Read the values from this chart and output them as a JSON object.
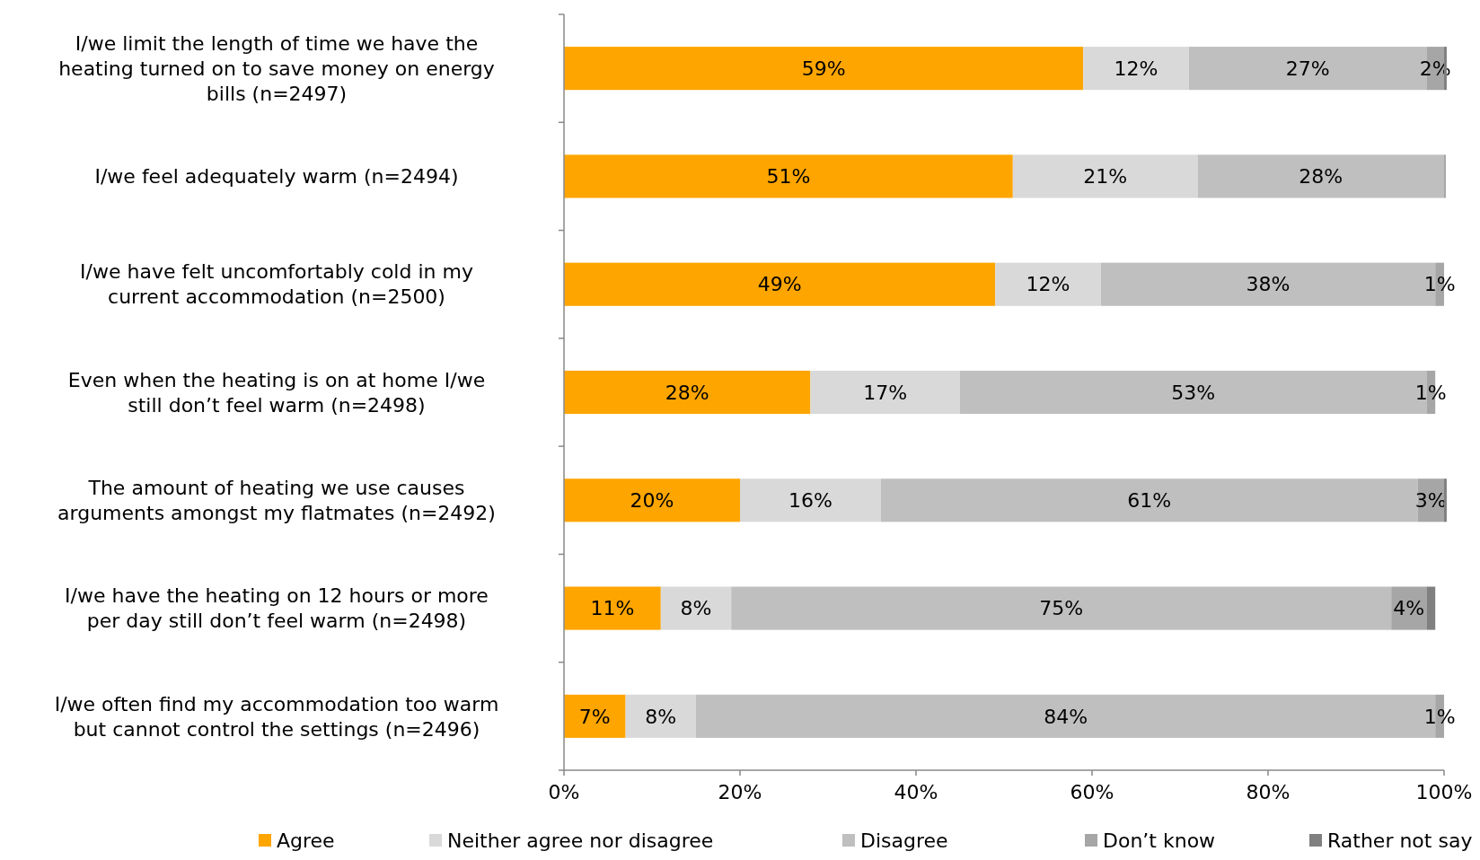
{
  "chart_data": {
    "type": "bar",
    "orientation": "horizontal",
    "stacked": true,
    "categories": [
      "I/we limit the length of time we have the heating turned on to save money on energy bills (n=2497)",
      "I/we feel adequately warm (n=2494)",
      "I/we have felt uncomfortably cold in my current accommodation (n=2500)",
      "Even when the heating is on at home I/we still don’t feel warm (n=2498)",
      "The amount of heating we use causes arguments amongst my flatmates (n=2492)",
      "I/we have the heating on 12 hours or more per day still don’t feel warm (n=2498)",
      "I/we often find my accommodation too warm but cannot control the settings (n=2496)"
    ],
    "series": [
      {
        "name": "Agree",
        "color": "#ffa500",
        "values": [
          59,
          51,
          49,
          28,
          20,
          11,
          7
        ],
        "value_labels": [
          "59%",
          "51%",
          "49%",
          "28%",
          "20%",
          "11%",
          "7%"
        ]
      },
      {
        "name": "Neither agree nor disagree",
        "color": "#d9d9d9",
        "values": [
          12,
          21,
          12,
          17,
          16,
          8,
          8
        ],
        "value_labels": [
          "12%",
          "21%",
          "12%",
          "17%",
          "16%",
          "8%",
          "8%"
        ]
      },
      {
        "name": "Disagree",
        "color": "#bfbfbf",
        "values": [
          27,
          28,
          38,
          53,
          61,
          75,
          84
        ],
        "value_labels": [
          "27%",
          "28%",
          "38%",
          "53%",
          "61%",
          "75%",
          "84%"
        ]
      },
      {
        "name": "Don’t know",
        "color": "#a6a6a6",
        "values": [
          2,
          0.2,
          1,
          1,
          3,
          4,
          1
        ],
        "value_labels": [
          "2%",
          null,
          "1%",
          "1%",
          "3%",
          "4%",
          "1%"
        ]
      },
      {
        "name": "Rather not say",
        "color": "#808080",
        "values": [
          0.3,
          0,
          0,
          0,
          0.3,
          1,
          0
        ],
        "value_labels": [
          null,
          null,
          null,
          null,
          null,
          null,
          null
        ]
      }
    ],
    "xlim": [
      0,
      100
    ],
    "xticks": [
      {
        "value": 0,
        "label": "0%"
      },
      {
        "value": 20,
        "label": "20%"
      },
      {
        "value": 40,
        "label": "40%"
      },
      {
        "value": 60,
        "label": "60%"
      },
      {
        "value": 80,
        "label": "80%"
      },
      {
        "value": 100,
        "label": "100%"
      }
    ],
    "legend": "bottom",
    "grid": false
  }
}
